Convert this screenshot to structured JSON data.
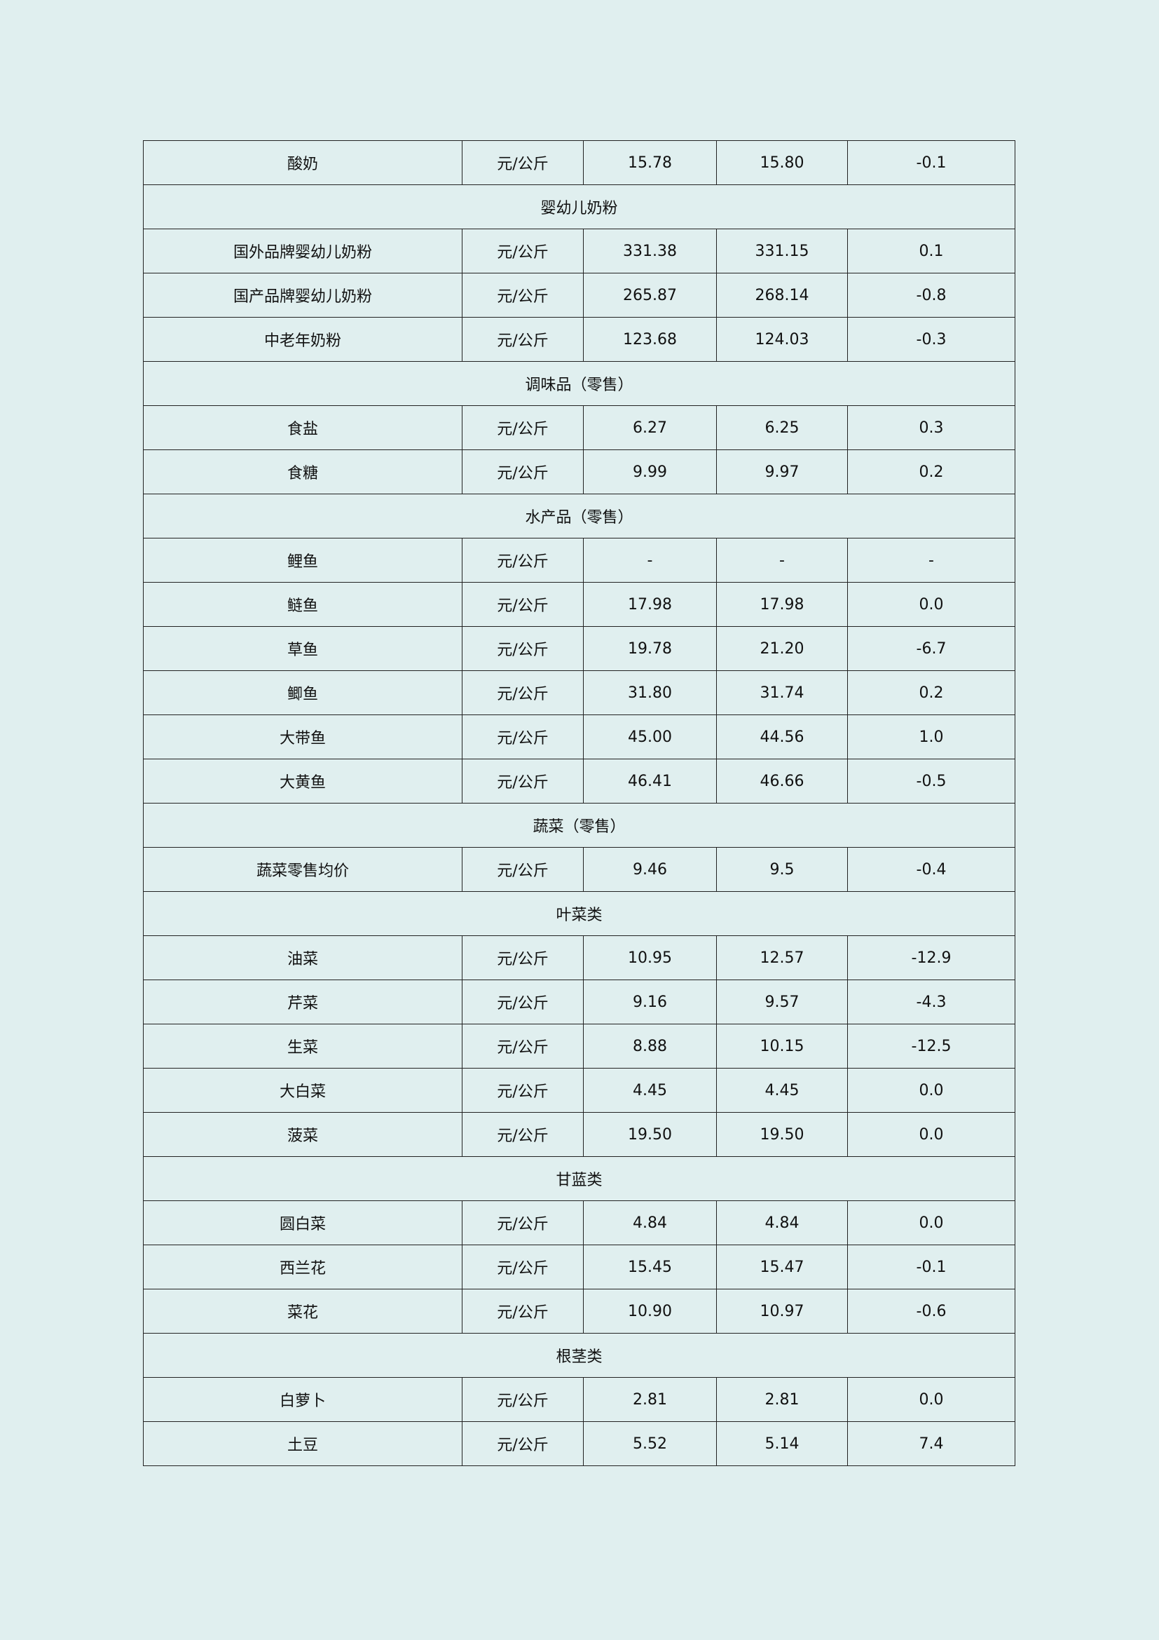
{
  "rows": [
    {
      "type": "item",
      "name": "酸奶",
      "unit": "元/公斤",
      "current": "15.78",
      "previous": "15.80",
      "change": "-0.1"
    },
    {
      "type": "category",
      "name": "婴幼儿奶粉"
    },
    {
      "type": "item",
      "name": "国外品牌婴幼儿奶粉",
      "unit": "元/公斤",
      "current": "331.38",
      "previous": "331.15",
      "change": "0.1"
    },
    {
      "type": "item",
      "name": "国产品牌婴幼儿奶粉",
      "unit": "元/公斤",
      "current": "265.87",
      "previous": "268.14",
      "change": "-0.8"
    },
    {
      "type": "item",
      "name": "中老年奶粉",
      "unit": "元/公斤",
      "current": "123.68",
      "previous": "124.03",
      "change": "-0.3"
    },
    {
      "type": "category",
      "name": "调味品（零售）"
    },
    {
      "type": "item",
      "name": "食盐",
      "unit": "元/公斤",
      "current": "6.27",
      "previous": "6.25",
      "change": "0.3"
    },
    {
      "type": "item",
      "name": "食糖",
      "unit": "元/公斤",
      "current": "9.99",
      "previous": "9.97",
      "change": "0.2"
    },
    {
      "type": "category",
      "name": "水产品（零售）"
    },
    {
      "type": "item",
      "name": "鲤鱼",
      "unit": "元/公斤",
      "current": "-",
      "previous": "-",
      "change": "-"
    },
    {
      "type": "item",
      "name": "鲢鱼",
      "unit": "元/公斤",
      "current": "17.98",
      "previous": "17.98",
      "change": "0.0"
    },
    {
      "type": "item",
      "name": "草鱼",
      "unit": "元/公斤",
      "current": "19.78",
      "previous": "21.20",
      "change": "-6.7"
    },
    {
      "type": "item",
      "name": "鲫鱼",
      "unit": "元/公斤",
      "current": "31.80",
      "previous": "31.74",
      "change": "0.2"
    },
    {
      "type": "item",
      "name": "大带鱼",
      "unit": "元/公斤",
      "current": "45.00",
      "previous": "44.56",
      "change": "1.0"
    },
    {
      "type": "item",
      "name": "大黄鱼",
      "unit": "元/公斤",
      "current": "46.41",
      "previous": "46.66",
      "change": "-0.5"
    },
    {
      "type": "category",
      "name": "蔬菜（零售）"
    },
    {
      "type": "item",
      "name": "蔬菜零售均价",
      "unit": "元/公斤",
      "current": "9.46",
      "previous": "9.5",
      "change": "-0.4"
    },
    {
      "type": "category",
      "name": "叶菜类"
    },
    {
      "type": "item",
      "name": "油菜",
      "unit": "元/公斤",
      "current": "10.95",
      "previous": "12.57",
      "change": "-12.9"
    },
    {
      "type": "item",
      "name": "芹菜",
      "unit": "元/公斤",
      "current": "9.16",
      "previous": "9.57",
      "change": "-4.3"
    },
    {
      "type": "item",
      "name": "生菜",
      "unit": "元/公斤",
      "current": "8.88",
      "previous": "10.15",
      "change": "-12.5"
    },
    {
      "type": "item",
      "name": "大白菜",
      "unit": "元/公斤",
      "current": "4.45",
      "previous": "4.45",
      "change": "0.0"
    },
    {
      "type": "item",
      "name": "菠菜",
      "unit": "元/公斤",
      "current": "19.50",
      "previous": "19.50",
      "change": "0.0"
    },
    {
      "type": "category",
      "name": "甘蓝类"
    },
    {
      "type": "item",
      "name": "圆白菜",
      "unit": "元/公斤",
      "current": "4.84",
      "previous": "4.84",
      "change": "0.0"
    },
    {
      "type": "item",
      "name": "西兰花",
      "unit": "元/公斤",
      "current": "15.45",
      "previous": "15.47",
      "change": "-0.1"
    },
    {
      "type": "item",
      "name": "菜花",
      "unit": "元/公斤",
      "current": "10.90",
      "previous": "10.97",
      "change": "-0.6"
    },
    {
      "type": "category",
      "name": "根茎类"
    },
    {
      "type": "item",
      "name": "白萝卜",
      "unit": "元/公斤",
      "current": "2.81",
      "previous": "2.81",
      "change": "0.0"
    },
    {
      "type": "item",
      "name": "土豆",
      "unit": "元/公斤",
      "current": "5.52",
      "previous": "5.14",
      "change": "7.4"
    }
  ]
}
